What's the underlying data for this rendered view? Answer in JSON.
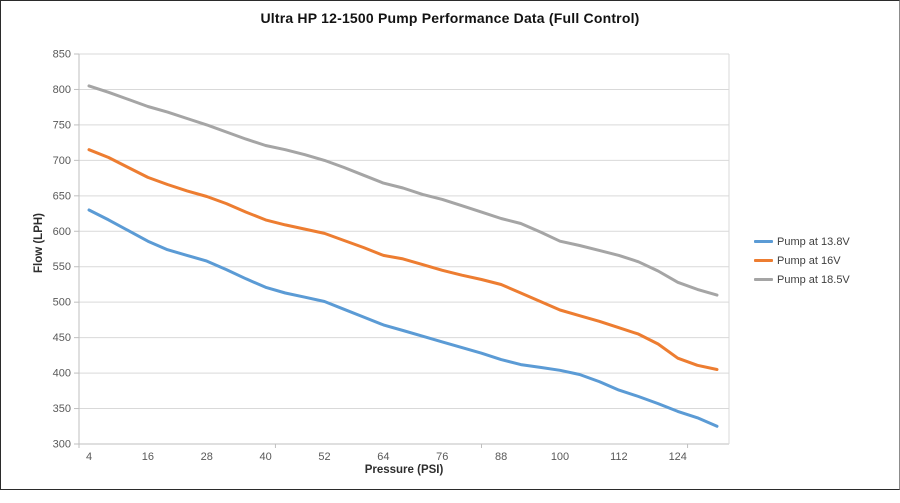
{
  "window": {
    "background_color": "#ffffff",
    "frame_border_color": "#2b2b2b"
  },
  "chart_data": {
    "type": "line",
    "title": "Ultra HP 12-1500 Pump Performance Data (Full Control)",
    "xlabel": "Pressure (PSI)",
    "ylabel": "Flow (LPH)",
    "x": [
      4,
      8,
      12,
      16,
      20,
      24,
      28,
      32,
      36,
      40,
      44,
      48,
      52,
      56,
      60,
      64,
      68,
      72,
      76,
      80,
      84,
      88,
      92,
      96,
      100,
      104,
      108,
      112,
      116,
      120,
      124,
      128,
      132
    ],
    "x_tick_labels": [
      4,
      16,
      28,
      40,
      52,
      64,
      76,
      88,
      100,
      112,
      124
    ],
    "x_axis_tick_marks": [
      42,
      84,
      126
    ],
    "ylim": [
      300,
      850
    ],
    "y_tick_step": 50,
    "y_tick_labels": [
      850,
      800,
      750,
      700,
      650,
      600,
      550,
      500,
      450,
      400,
      350,
      300
    ],
    "grid": true,
    "legend_position": "right",
    "series": [
      {
        "name": "Pump at 13.8V",
        "color": "#5B9BD5",
        "values": [
          630,
          616,
          601,
          586,
          574,
          566,
          558,
          546,
          533,
          521,
          513,
          507,
          501,
          490,
          479,
          468,
          460,
          452,
          444,
          436,
          428,
          419,
          412,
          408,
          404,
          398,
          388,
          376,
          367,
          357,
          346,
          337,
          325
        ]
      },
      {
        "name": "Pump at 16V",
        "color": "#ED7D31",
        "values": [
          715,
          704,
          690,
          676,
          666,
          657,
          649,
          639,
          627,
          616,
          609,
          603,
          597,
          587,
          577,
          566,
          561,
          553,
          545,
          538,
          532,
          525,
          513,
          501,
          489,
          481,
          473,
          464,
          455,
          441,
          421,
          411,
          405
        ]
      },
      {
        "name": "Pump at 18.5V",
        "color": "#A5A5A5",
        "values": [
          805,
          796,
          786,
          776,
          768,
          759,
          750,
          740,
          730,
          721,
          715,
          708,
          700,
          690,
          679,
          668,
          661,
          652,
          645,
          636,
          627,
          618,
          611,
          599,
          586,
          580,
          573,
          566,
          557,
          544,
          528,
          518,
          510
        ]
      }
    ],
    "style": {
      "gridline_color": "#d9d9d9",
      "axis_line_color": "#bfbfbf",
      "tick_label_color": "#595959",
      "line_width": 3
    }
  }
}
